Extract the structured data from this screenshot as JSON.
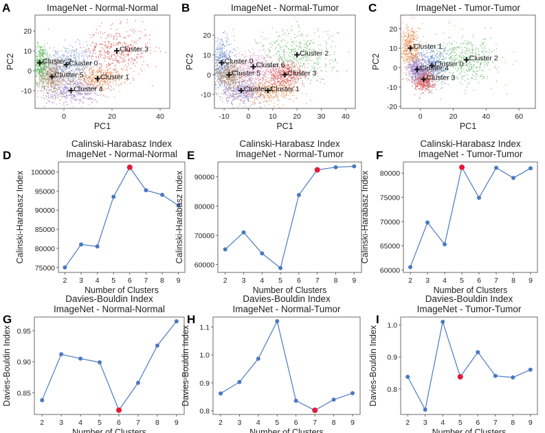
{
  "colors": {
    "line": "#4a78c2",
    "point": "#4a78c2",
    "best": "#e31a3a",
    "cluster_palette": [
      "#6a8fd4",
      "#e58a4d",
      "#5db85d",
      "#d9524f",
      "#9b83c9",
      "#a98560",
      "#e59ad2"
    ]
  },
  "chart_data": [
    {
      "panel": "A",
      "type": "scatter",
      "title": "ImageNet - Normal-Normal",
      "xlabel": "PC1",
      "ylabel": "PC2",
      "xlim": [
        -12,
        44
      ],
      "ylim": [
        -19,
        28
      ],
      "xticks": [
        0,
        20,
        40
      ],
      "yticks": [
        -10,
        0,
        10,
        20
      ],
      "clusters": [
        {
          "name": "Cluster 0",
          "x": 1,
          "y": 3,
          "color_index": 0
        },
        {
          "name": "Cluster 1",
          "x": 14,
          "y": -4,
          "color_index": 1
        },
        {
          "name": "Cluster 2",
          "x": -10,
          "y": 4,
          "color_index": 2
        },
        {
          "name": "Cluster 3",
          "x": 22,
          "y": 10,
          "color_index": 3
        },
        {
          "name": "Cluster 4",
          "x": 3,
          "y": -10,
          "color_index": 4
        },
        {
          "name": "Cluster 5",
          "x": -5,
          "y": -3,
          "color_index": 5
        }
      ]
    },
    {
      "panel": "B",
      "type": "scatter",
      "title": "ImageNet - Normal-Tumor",
      "xlabel": "PC1",
      "ylabel": "PC2",
      "xlim": [
        -14,
        44
      ],
      "ylim": [
        -17,
        30
      ],
      "xticks": [
        -10,
        0,
        10,
        20,
        30,
        40
      ],
      "yticks": [
        -10,
        0,
        10,
        20
      ],
      "clusters": [
        {
          "name": "Cluster 0",
          "x": -11,
          "y": 6,
          "color_index": 0
        },
        {
          "name": "Cluster 1",
          "x": 8,
          "y": -8,
          "color_index": 1
        },
        {
          "name": "Cluster 2",
          "x": 20,
          "y": 10,
          "color_index": 2
        },
        {
          "name": "Cluster 3",
          "x": 15,
          "y": 0,
          "color_index": 3
        },
        {
          "name": "Cluster 4",
          "x": -3,
          "y": -8,
          "color_index": 4
        },
        {
          "name": "Cluster 5",
          "x": -8,
          "y": 0,
          "color_index": 5
        },
        {
          "name": "Cluster 6",
          "x": 2,
          "y": 4,
          "color_index": 6
        }
      ]
    },
    {
      "panel": "C",
      "type": "scatter",
      "title": "ImageNet - Tumor-Tumor",
      "xlabel": "PC1",
      "ylabel": "PC2",
      "xlim": [
        -12,
        70
      ],
      "ylim": [
        -21,
        27
      ],
      "xticks": [
        0,
        20,
        40,
        60
      ],
      "yticks": [
        -20,
        -10,
        0,
        10,
        20
      ],
      "clusters": [
        {
          "name": "Cluster 0",
          "x": 7,
          "y": 1,
          "color_index": 0
        },
        {
          "name": "Cluster 1",
          "x": -6,
          "y": 10,
          "color_index": 1
        },
        {
          "name": "Cluster 2",
          "x": 28,
          "y": 4,
          "color_index": 2
        },
        {
          "name": "Cluster 3",
          "x": 2,
          "y": -6,
          "color_index": 3
        },
        {
          "name": "Cluster 4",
          "x": -2,
          "y": -1,
          "color_index": 4
        }
      ]
    },
    {
      "panel": "D",
      "type": "line",
      "title": "Calinski-Harabasz Index",
      "subtitle": "ImageNet - Normal-Normal",
      "xlabel": "Number of Clusters",
      "ylabel": "Calinski-Harabasz Index",
      "x": [
        2,
        3,
        4,
        5,
        6,
        7,
        8,
        9
      ],
      "values": [
        75000,
        81000,
        80500,
        93500,
        101200,
        95200,
        94000,
        91200
      ],
      "best_index": 4,
      "xlim": [
        1.6,
        9.4
      ],
      "ylim": [
        73700,
        102600
      ],
      "yticks": [
        75000,
        80000,
        85000,
        90000,
        95000,
        100000
      ],
      "ytick_labels": [
        "75000",
        "80000",
        "85000",
        "90000",
        "95000",
        "100000"
      ]
    },
    {
      "panel": "E",
      "type": "line",
      "title": "Calinski-Harabasz Index",
      "subtitle": "ImageNet - Normal-Tumor",
      "xlabel": "Number of Clusters",
      "ylabel": "Calinski-Harabasz Index",
      "x": [
        2,
        3,
        4,
        5,
        6,
        7,
        8,
        9
      ],
      "values": [
        65200,
        71000,
        63800,
        58800,
        83800,
        92400,
        93300,
        93600
      ],
      "best_index": 5,
      "xlim": [
        1.6,
        9.4
      ],
      "ylim": [
        57300,
        95100
      ],
      "yticks": [
        60000,
        70000,
        80000,
        90000
      ],
      "ytick_labels": [
        "60000",
        "70000",
        "80000",
        "90000"
      ]
    },
    {
      "panel": "F",
      "type": "line",
      "title": "Calinski-Harabasz Index",
      "subtitle": "ImageNet - Tumor-Tumor",
      "xlabel": "Number of Clusters",
      "ylabel": "Calinski-Harabasz Index",
      "x": [
        2,
        3,
        4,
        5,
        6,
        7,
        8,
        9
      ],
      "values": [
        60600,
        69800,
        65300,
        81200,
        74900,
        81100,
        79000,
        81000
      ],
      "best_index": 3,
      "xlim": [
        1.6,
        9.4
      ],
      "ylim": [
        59500,
        82300
      ],
      "yticks": [
        60000,
        65000,
        70000,
        75000,
        80000
      ],
      "ytick_labels": [
        "60000",
        "65000",
        "70000",
        "75000",
        "80000"
      ]
    },
    {
      "panel": "G",
      "type": "line",
      "title": "Davies-Bouldin Index",
      "subtitle": "ImageNet - Normal-Normal",
      "xlabel": "Number of Clusters",
      "ylabel": "Davies-Bouldin Index",
      "x": [
        2,
        3,
        4,
        5,
        6,
        7,
        8,
        9
      ],
      "values": [
        0.838,
        0.912,
        0.905,
        0.899,
        0.822,
        0.866,
        0.926,
        0.965
      ],
      "best_index": 4,
      "xlim": [
        1.6,
        9.4
      ],
      "ylim": [
        0.815,
        0.972
      ],
      "yticks": [
        0.85,
        0.9,
        0.95
      ],
      "ytick_labels": [
        "0.85",
        "0.90",
        "0.95"
      ]
    },
    {
      "panel": "H",
      "type": "line",
      "title": "Davies-Bouldin Index",
      "subtitle": "ImageNet - Normal-Tumor",
      "xlabel": "Number of Clusters",
      "ylabel": "Davies-Bouldin Index",
      "x": [
        2,
        3,
        4,
        5,
        6,
        7,
        8,
        9
      ],
      "values": [
        0.862,
        0.903,
        0.986,
        1.12,
        0.836,
        0.802,
        0.84,
        0.863
      ],
      "best_index": 5,
      "xlim": [
        1.6,
        9.4
      ],
      "ylim": [
        0.787,
        1.135
      ],
      "yticks": [
        0.8,
        0.9,
        1.0,
        1.1
      ],
      "ytick_labels": [
        "0.8",
        "0.9",
        "1.0",
        "1.1"
      ]
    },
    {
      "panel": "I",
      "type": "line",
      "title": "Davies-Bouldin Index",
      "subtitle": "ImageNet - Tumor-Tumor",
      "xlabel": "Number of Clusters",
      "ylabel": "Davies-Bouldin Index",
      "x": [
        2,
        3,
        4,
        5,
        6,
        7,
        8,
        9
      ],
      "values": [
        0.838,
        0.735,
        1.01,
        0.838,
        0.915,
        0.841,
        0.836,
        0.86
      ],
      "best_index": 3,
      "xlim": [
        1.6,
        9.4
      ],
      "ylim": [
        0.72,
        1.025
      ],
      "yticks": [
        0.8,
        0.9,
        1.0
      ],
      "ytick_labels": [
        "0.8",
        "0.9",
        "1.0"
      ]
    }
  ]
}
